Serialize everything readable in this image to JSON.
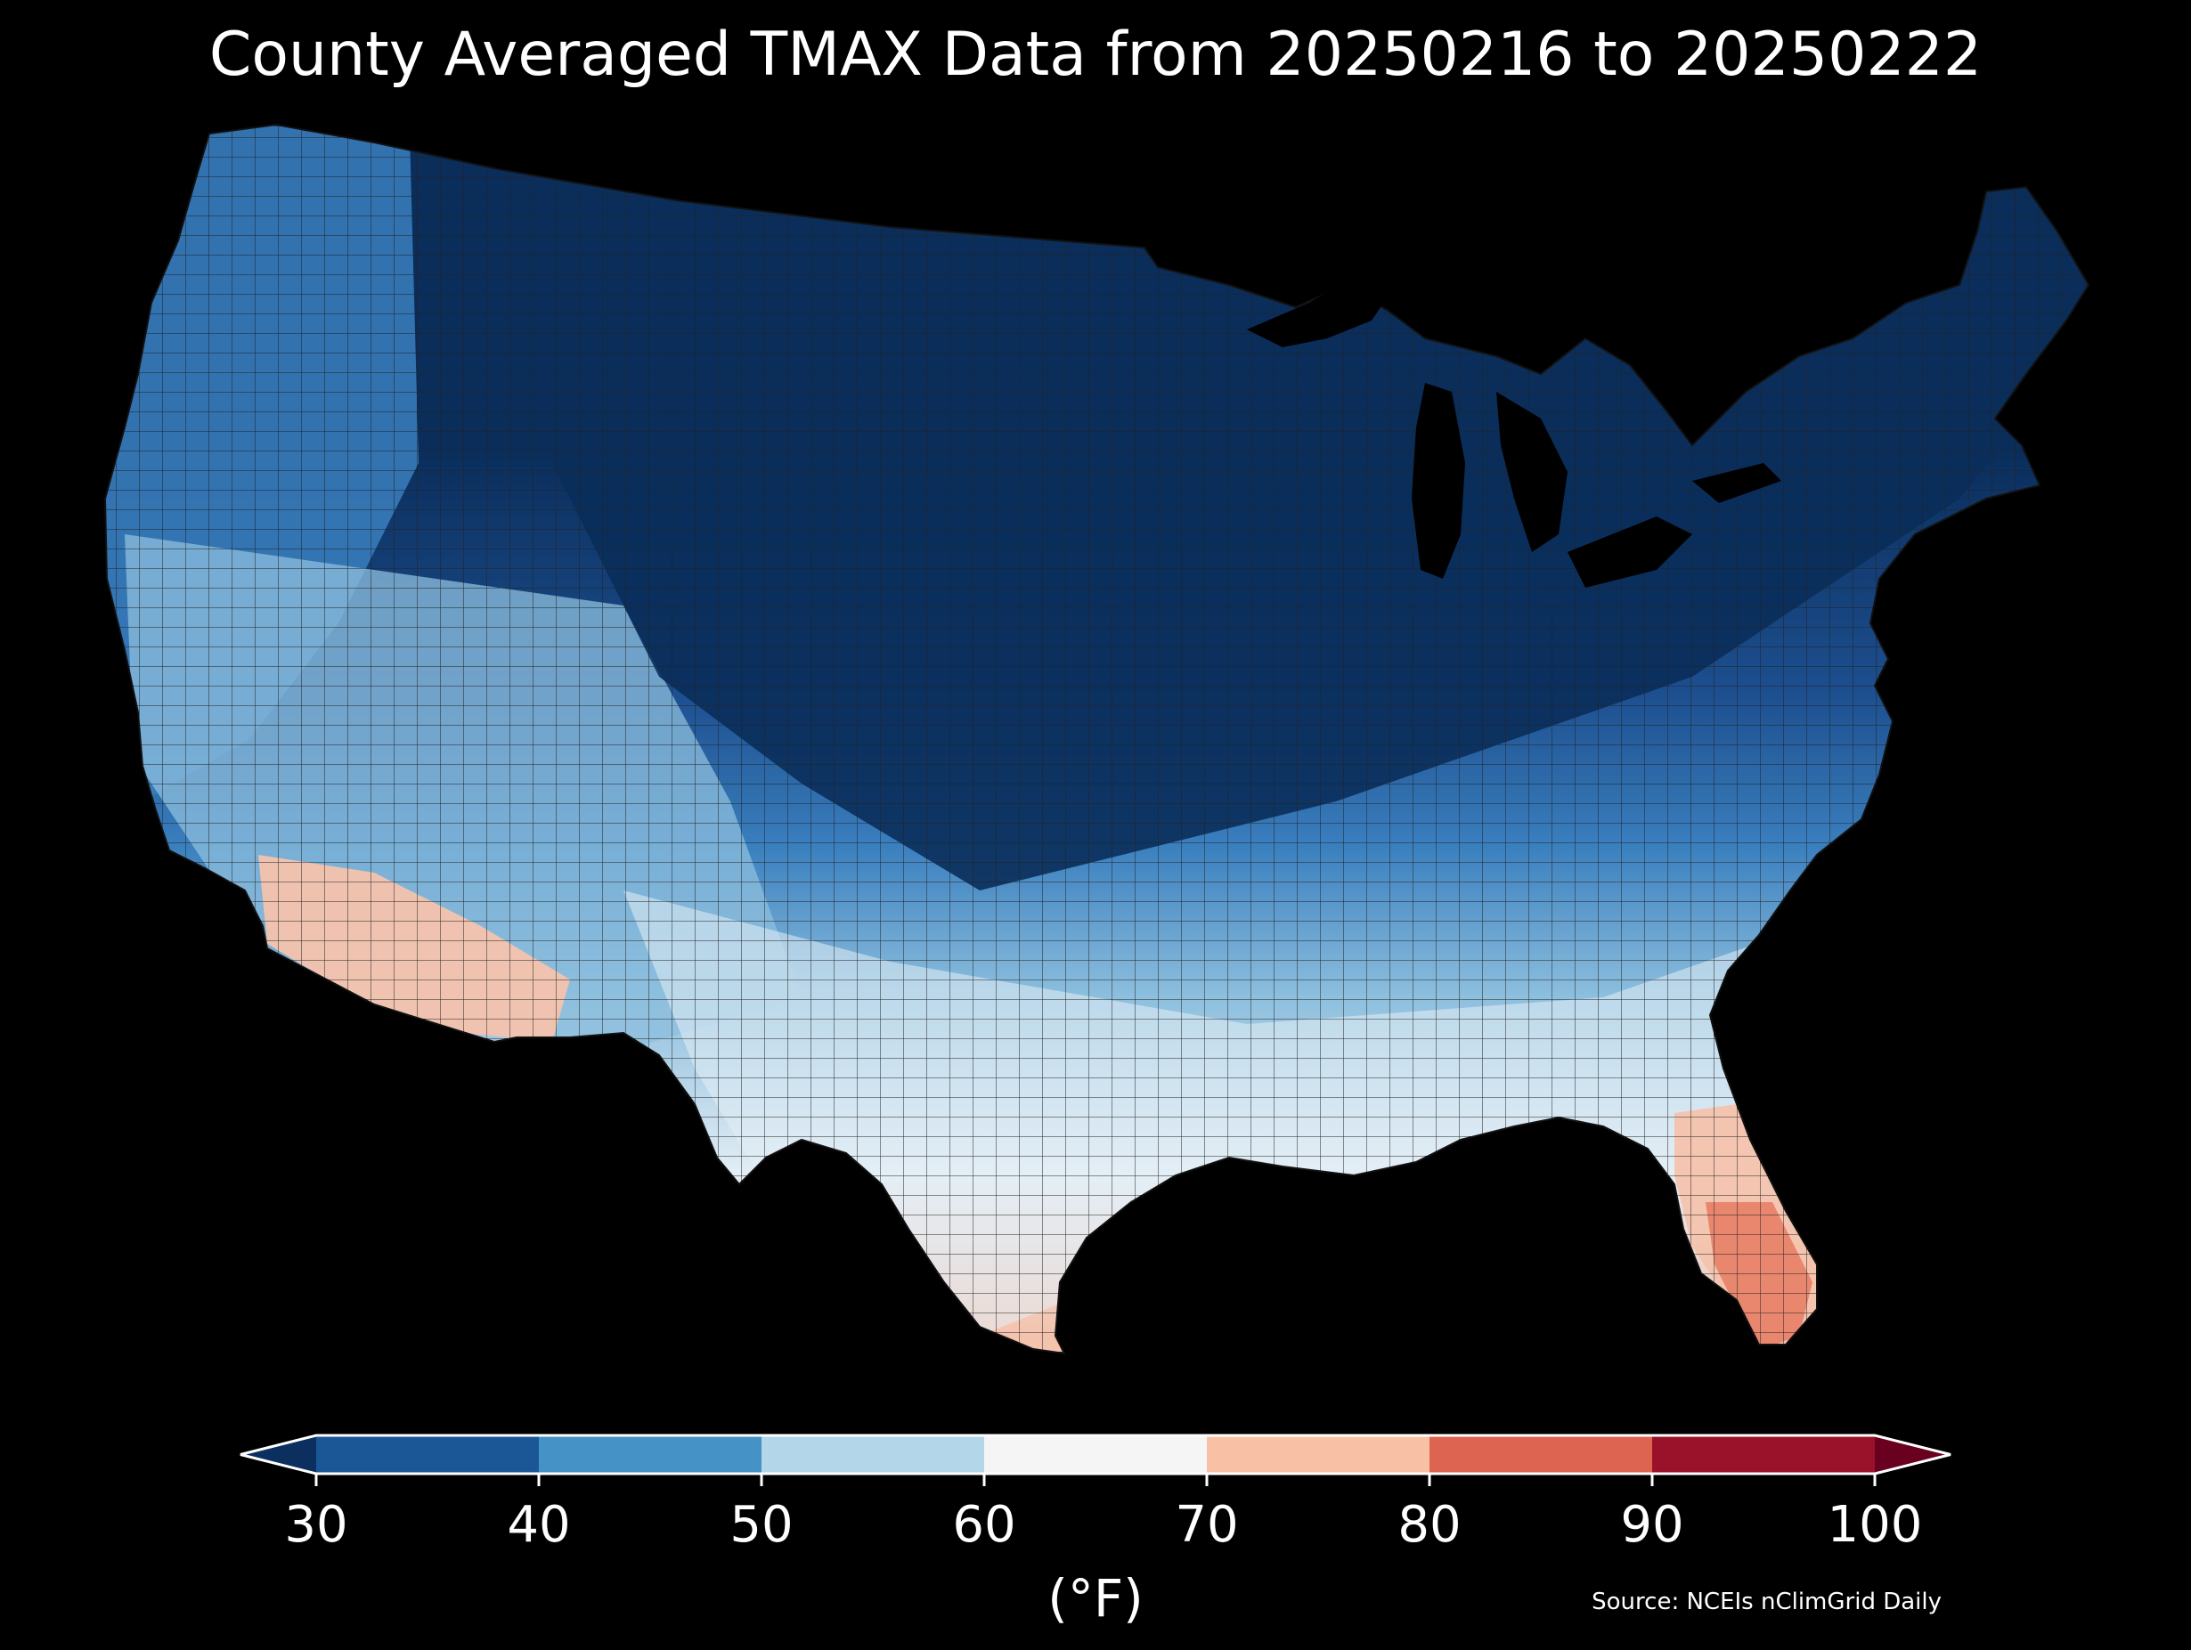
{
  "title": "County Averaged TMAX Data from 20250216 to 20250222",
  "source": "Source: NCEIs nClimGrid Daily",
  "colorbar": {
    "unit": "(°F)",
    "ticks": [
      "30",
      "40",
      "50",
      "60",
      "70",
      "80",
      "90",
      "100"
    ],
    "bins": [
      {
        "from": 30,
        "to": 40,
        "color": "#1b5697"
      },
      {
        "from": 40,
        "to": 50,
        "color": "#4592c6"
      },
      {
        "from": 50,
        "to": 60,
        "color": "#b4d6e9"
      },
      {
        "from": 60,
        "to": 70,
        "color": "#f5f5f5"
      },
      {
        "from": 70,
        "to": 80,
        "color": "#f8c1a6"
      },
      {
        "from": 80,
        "to": 90,
        "color": "#dc6450"
      },
      {
        "from": 90,
        "to": 100,
        "color": "#9a1229"
      }
    ],
    "under_color": "#0b2f5f",
    "over_color": "#6a0020"
  },
  "map_colors": {
    "coldest": "#0a2d5a",
    "cold": "#1d4f8f",
    "cool": "#3a7fbe",
    "mild": "#8dbfde",
    "neutral": "#e4eef5",
    "warm": "#f4c3ad",
    "hot": "#e7846a",
    "background": "#000000",
    "boundary": "#222222"
  }
}
